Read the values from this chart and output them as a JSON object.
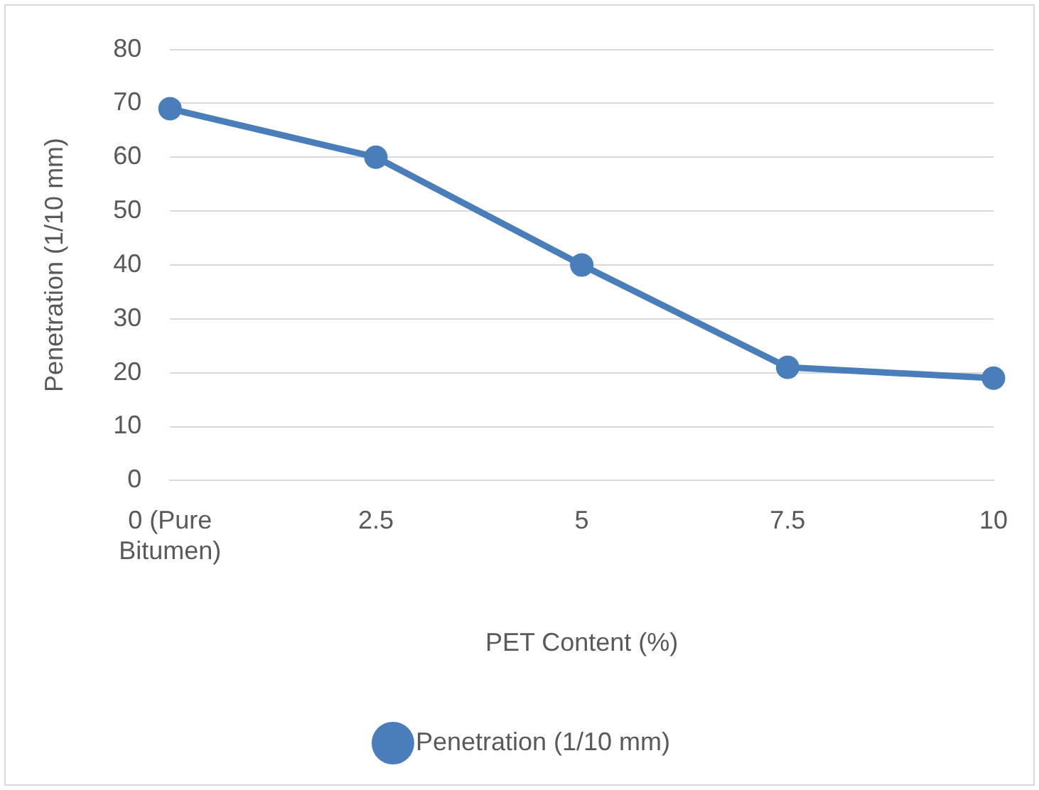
{
  "chart_data": {
    "type": "line",
    "xlabel": "PET Content (%)",
    "ylabel": "Penetration (1/10 mm)",
    "categories": [
      "0 (Pure Bitumen)",
      "2.5",
      "5",
      "7.5",
      "10"
    ],
    "series": [
      {
        "name": "Penetration (1/10 mm)",
        "color": "#4a7ebb",
        "values": [
          69,
          60,
          40,
          21,
          19
        ]
      }
    ],
    "ylim": [
      0,
      80
    ],
    "yticks": [
      0,
      10,
      20,
      30,
      40,
      50,
      60,
      70,
      80
    ],
    "grid": "y",
    "legend": "bottom",
    "marker": "circle",
    "line_style": "solid"
  }
}
